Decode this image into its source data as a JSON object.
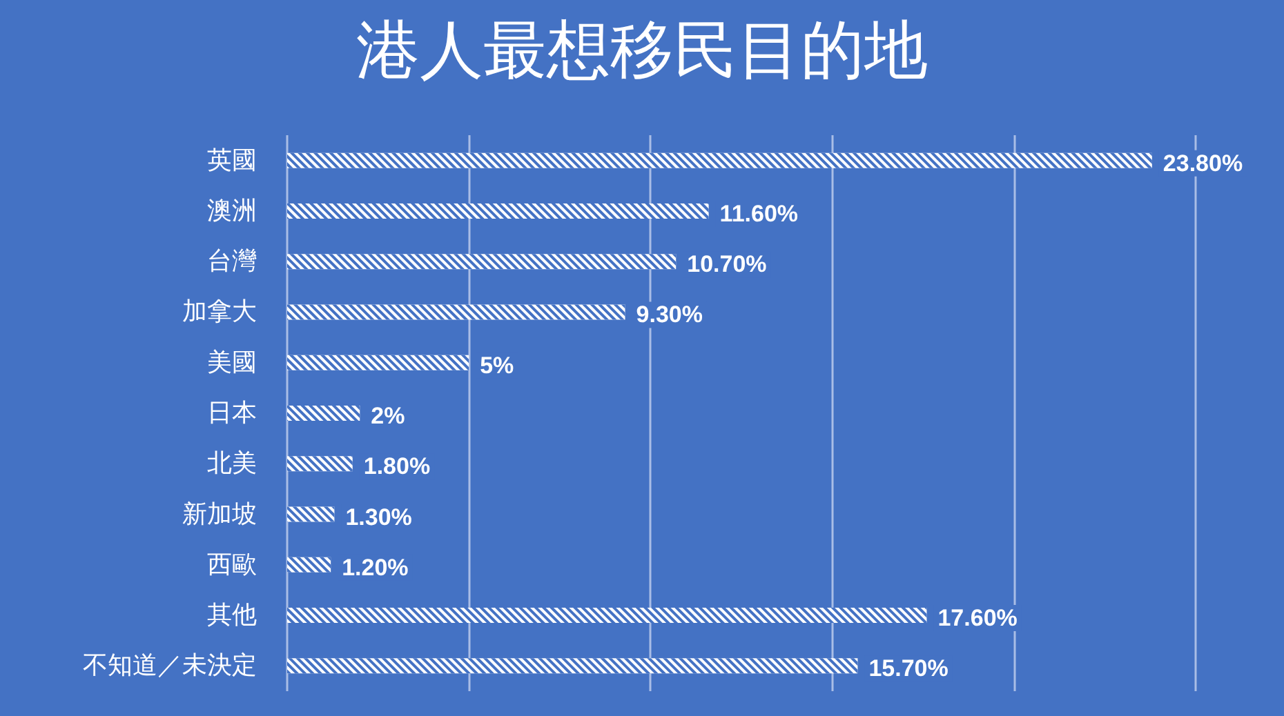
{
  "chart_data": {
    "type": "bar",
    "orientation": "horizontal",
    "title": "港人最想移民目的地",
    "categories": [
      "英國",
      "澳洲",
      "台灣",
      "加拿大",
      "美國",
      "日本",
      "北美",
      "新加坡",
      "西歐",
      "其他",
      "不知道／未決定"
    ],
    "values": [
      23.8,
      11.6,
      10.7,
      9.3,
      5,
      2,
      1.8,
      1.3,
      1.2,
      17.6,
      15.7
    ],
    "value_labels": [
      "23.80%",
      "11.60%",
      "10.70%",
      "9.30%",
      "5%",
      "2%",
      "1.80%",
      "1.30%",
      "1.20%",
      "17.60%",
      "15.70%"
    ],
    "color": "#ffffff",
    "xlim": [
      0,
      25
    ],
    "xticks": [
      {
        "value": 0,
        "label": null
      },
      {
        "value": 5,
        "label": null
      },
      {
        "value": 10,
        "label": null
      },
      {
        "value": 15,
        "label": null
      },
      {
        "value": 20,
        "label": null
      },
      {
        "value": 25,
        "label": null
      }
    ],
    "tick_labels": "y",
    "grid": "x"
  }
}
